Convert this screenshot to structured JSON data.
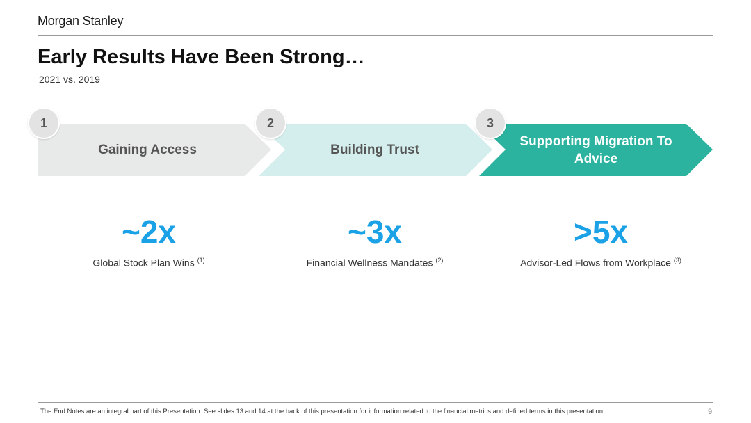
{
  "header": {
    "logo": "Morgan Stanley",
    "title": "Early Results Have Been Strong…",
    "subtitle": "2021 vs. 2019"
  },
  "steps": [
    {
      "number": "1",
      "label": "Gaining Access",
      "fill": "#e8e9e9",
      "text_color": "#555555"
    },
    {
      "number": "2",
      "label": "Building Trust",
      "fill": "#d3eeec",
      "text_color": "#555555"
    },
    {
      "number": "3",
      "label": "Supporting Migration To Advice",
      "fill": "#2bb39f",
      "text_color": "#ffffff"
    }
  ],
  "metrics": [
    {
      "value": "~2x",
      "caption": "Global Stock Plan Wins",
      "note": "(1)"
    },
    {
      "value": "~3x",
      "caption": "Financial Wellness Mandates",
      "note": "(2)"
    },
    {
      "value": ">5x",
      "caption": "Advisor-Led Flows from Workplace",
      "note": "(3)"
    }
  ],
  "colors": {
    "metric_blue": "#1aa1e6",
    "badge_gray": "#e3e3e3"
  },
  "footer": {
    "note": "The End Notes are an integral part of this Presentation. See slides 13 and 14 at the back of this presentation for information related to the financial metrics and defined terms in this presentation.",
    "page_number": "9"
  }
}
